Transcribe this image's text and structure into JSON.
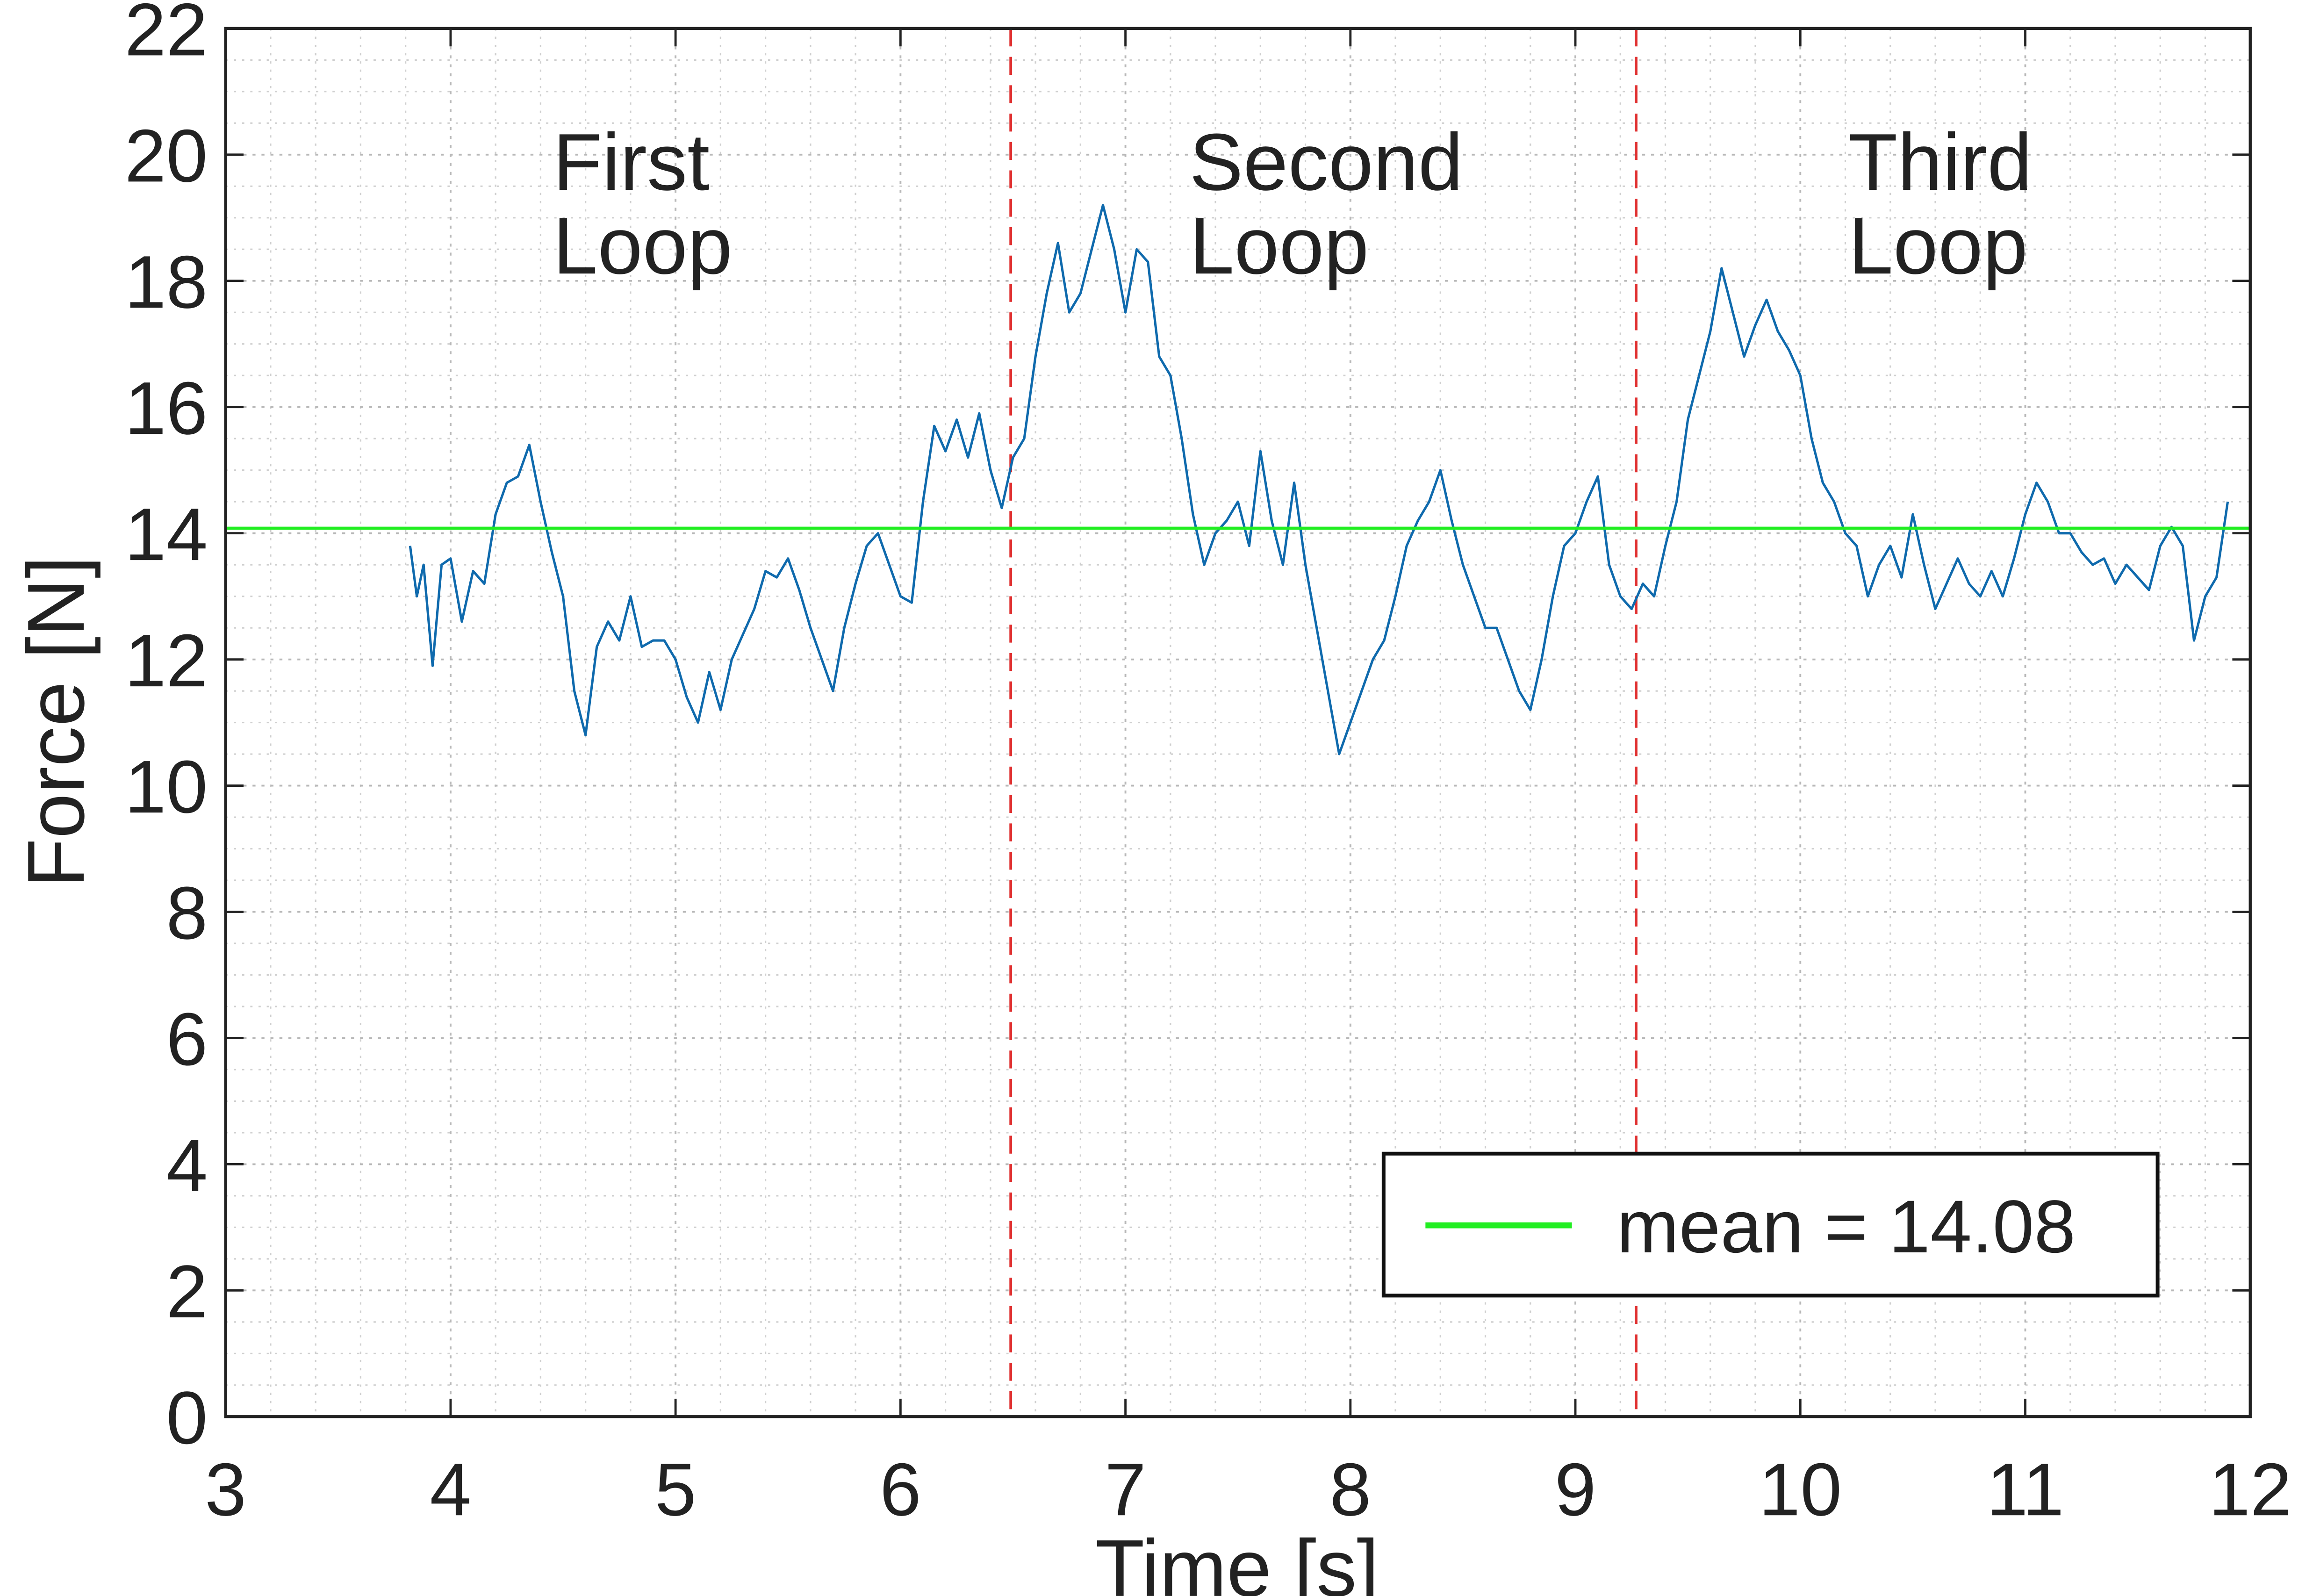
{
  "chart_data": {
    "type": "line",
    "xlabel": "Time [s]",
    "ylabel": "Force [N]",
    "xlim": [
      3,
      12
    ],
    "xticks": [
      3,
      4,
      5,
      6,
      7,
      8,
      9,
      10,
      11,
      12
    ],
    "ylim": [
      0,
      22
    ],
    "yticks": [
      0,
      2,
      4,
      6,
      8,
      10,
      12,
      14,
      16,
      18,
      20,
      22
    ],
    "grid": true,
    "minor_grid": true,
    "legend": "lower right",
    "series": [
      {
        "name": null,
        "color": "#0f6aad",
        "x": [
          3.82,
          3.85,
          3.88,
          3.92,
          3.96,
          4.0,
          4.05,
          4.1,
          4.15,
          4.2,
          4.25,
          4.3,
          4.35,
          4.4,
          4.45,
          4.5,
          4.55,
          4.6,
          4.65,
          4.7,
          4.75,
          4.8,
          4.85,
          4.9,
          4.95,
          5.0,
          5.05,
          5.1,
          5.15,
          5.2,
          5.25,
          5.3,
          5.35,
          5.4,
          5.45,
          5.5,
          5.55,
          5.6,
          5.65,
          5.7,
          5.75,
          5.8,
          5.85,
          5.9,
          5.95,
          6.0,
          6.05,
          6.1,
          6.15,
          6.2,
          6.25,
          6.3,
          6.35,
          6.4,
          6.45,
          6.5,
          6.55,
          6.6,
          6.65,
          6.7,
          6.75,
          6.8,
          6.85,
          6.9,
          6.95,
          7.0,
          7.05,
          7.1,
          7.15,
          7.2,
          7.25,
          7.3,
          7.35,
          7.4,
          7.45,
          7.5,
          7.55,
          7.6,
          7.65,
          7.7,
          7.75,
          7.8,
          7.85,
          7.9,
          7.95,
          8.0,
          8.05,
          8.1,
          8.15,
          8.2,
          8.25,
          8.3,
          8.35,
          8.4,
          8.45,
          8.5,
          8.55,
          8.6,
          8.65,
          8.7,
          8.75,
          8.8,
          8.85,
          8.9,
          8.95,
          9.0,
          9.05,
          9.1,
          9.15,
          9.2,
          9.25,
          9.3,
          9.35,
          9.4,
          9.45,
          9.5,
          9.55,
          9.6,
          9.65,
          9.7,
          9.75,
          9.8,
          9.85,
          9.9,
          9.95,
          10.0,
          10.05,
          10.1,
          10.15,
          10.2,
          10.25,
          10.3,
          10.35,
          10.4,
          10.45,
          10.5,
          10.55,
          10.6,
          10.65,
          10.7,
          10.75,
          10.8,
          10.85,
          10.9,
          10.95,
          11.0,
          11.05,
          11.1,
          11.15,
          11.2,
          11.25,
          11.3,
          11.35,
          11.4,
          11.45,
          11.5,
          11.55,
          11.6,
          11.65,
          11.7,
          11.75,
          11.8,
          11.85,
          11.9
        ],
        "values": [
          13.8,
          13.0,
          13.5,
          11.9,
          13.5,
          13.6,
          12.6,
          13.4,
          13.2,
          14.3,
          14.8,
          14.9,
          15.4,
          14.5,
          13.7,
          13.0,
          11.5,
          10.8,
          12.2,
          12.6,
          12.3,
          13.0,
          12.2,
          12.3,
          12.3,
          12.0,
          11.4,
          11.0,
          11.8,
          11.2,
          12.0,
          12.4,
          12.8,
          13.4,
          13.3,
          13.6,
          13.1,
          12.5,
          12.0,
          11.5,
          12.5,
          13.2,
          13.8,
          14.0,
          13.5,
          13.0,
          12.9,
          14.5,
          15.7,
          15.3,
          15.8,
          15.2,
          15.9,
          15.0,
          14.4,
          15.2,
          15.5,
          16.8,
          17.8,
          18.6,
          17.5,
          17.8,
          18.5,
          19.2,
          18.5,
          17.5,
          18.5,
          18.3,
          16.8,
          16.5,
          15.5,
          14.3,
          13.5,
          14.0,
          14.2,
          14.5,
          13.8,
          15.3,
          14.2,
          13.5,
          14.8,
          13.5,
          12.5,
          11.5,
          10.5,
          11.0,
          11.5,
          12.0,
          12.3,
          13.0,
          13.8,
          14.2,
          14.5,
          15.0,
          14.2,
          13.5,
          13.0,
          12.5,
          12.5,
          12.0,
          11.5,
          11.2,
          12.0,
          13.0,
          13.8,
          14.0,
          14.5,
          14.9,
          13.5,
          13.0,
          12.8,
          13.2,
          13.0,
          13.8,
          14.5,
          15.8,
          16.5,
          17.2,
          18.2,
          17.5,
          16.8,
          17.3,
          17.7,
          17.2,
          16.9,
          16.5,
          15.5,
          14.8,
          14.5,
          14.0,
          13.8,
          13.0,
          13.5,
          13.8,
          13.3,
          14.3,
          13.5,
          12.8,
          13.2,
          13.6,
          13.2,
          13.0,
          13.4,
          13.0,
          13.6,
          14.3,
          14.8,
          14.5,
          14.0,
          14.0,
          13.7,
          13.5,
          13.6,
          13.2,
          13.5,
          13.3,
          13.1,
          13.8,
          14.1,
          13.8,
          12.3,
          13.0,
          13.3,
          14.5
        ]
      },
      {
        "name": "mean = 14.08",
        "color": "#22ee22",
        "hline": 14.08
      }
    ],
    "vlines": {
      "color": "#e03030",
      "x": [
        6.49,
        9.27
      ]
    },
    "annotations": [
      [
        "First",
        "Loop"
      ],
      [
        "Second",
        "Loop"
      ],
      [
        "Third",
        "Loop"
      ]
    ]
  }
}
